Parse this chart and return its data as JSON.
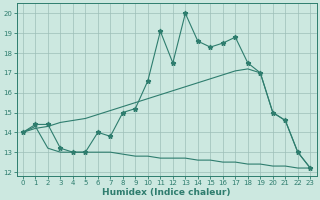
{
  "xlabel": "Humidex (Indice chaleur)",
  "bg_color": "#cce8e0",
  "line_color": "#2e7d6e",
  "grid_color": "#9dbfb8",
  "xlim": [
    -0.5,
    23.5
  ],
  "ylim": [
    11.8,
    20.5
  ],
  "yticks": [
    12,
    13,
    14,
    15,
    16,
    17,
    18,
    19,
    20
  ],
  "xticks": [
    0,
    1,
    2,
    3,
    4,
    5,
    6,
    7,
    8,
    9,
    10,
    11,
    12,
    13,
    14,
    15,
    16,
    17,
    18,
    19,
    20,
    21,
    22,
    23
  ],
  "series1_x": [
    0,
    1,
    2,
    3,
    4,
    5,
    6,
    7,
    8,
    9,
    10,
    11,
    12,
    13,
    14,
    15,
    16,
    17,
    18,
    19,
    20,
    21,
    22,
    23
  ],
  "series1_y": [
    14.0,
    14.4,
    14.4,
    13.2,
    13.0,
    13.0,
    14.0,
    13.8,
    15.0,
    15.2,
    16.6,
    19.1,
    17.5,
    20.0,
    18.6,
    18.3,
    18.5,
    18.8,
    17.5,
    17.0,
    15.0,
    14.6,
    13.0,
    12.2
  ],
  "series2_x": [
    0,
    1,
    2,
    3,
    4,
    5,
    6,
    7,
    8,
    9,
    10,
    11,
    12,
    13,
    14,
    15,
    16,
    17,
    18,
    19,
    20,
    21,
    22,
    23
  ],
  "series2_y": [
    14.0,
    14.2,
    14.3,
    14.5,
    14.6,
    14.7,
    14.9,
    15.1,
    15.3,
    15.5,
    15.7,
    15.9,
    16.1,
    16.3,
    16.5,
    16.7,
    16.9,
    17.1,
    17.2,
    17.0,
    15.0,
    14.6,
    13.0,
    12.2
  ],
  "series3_x": [
    0,
    1,
    2,
    3,
    4,
    5,
    6,
    7,
    8,
    9,
    10,
    11,
    12,
    13,
    14,
    15,
    16,
    17,
    18,
    19,
    20,
    21,
    22,
    23
  ],
  "series3_y": [
    14.0,
    14.3,
    13.2,
    13.0,
    13.0,
    13.0,
    13.0,
    13.0,
    12.9,
    12.8,
    12.8,
    12.7,
    12.7,
    12.7,
    12.6,
    12.6,
    12.5,
    12.5,
    12.4,
    12.4,
    12.3,
    12.3,
    12.2,
    12.2
  ]
}
